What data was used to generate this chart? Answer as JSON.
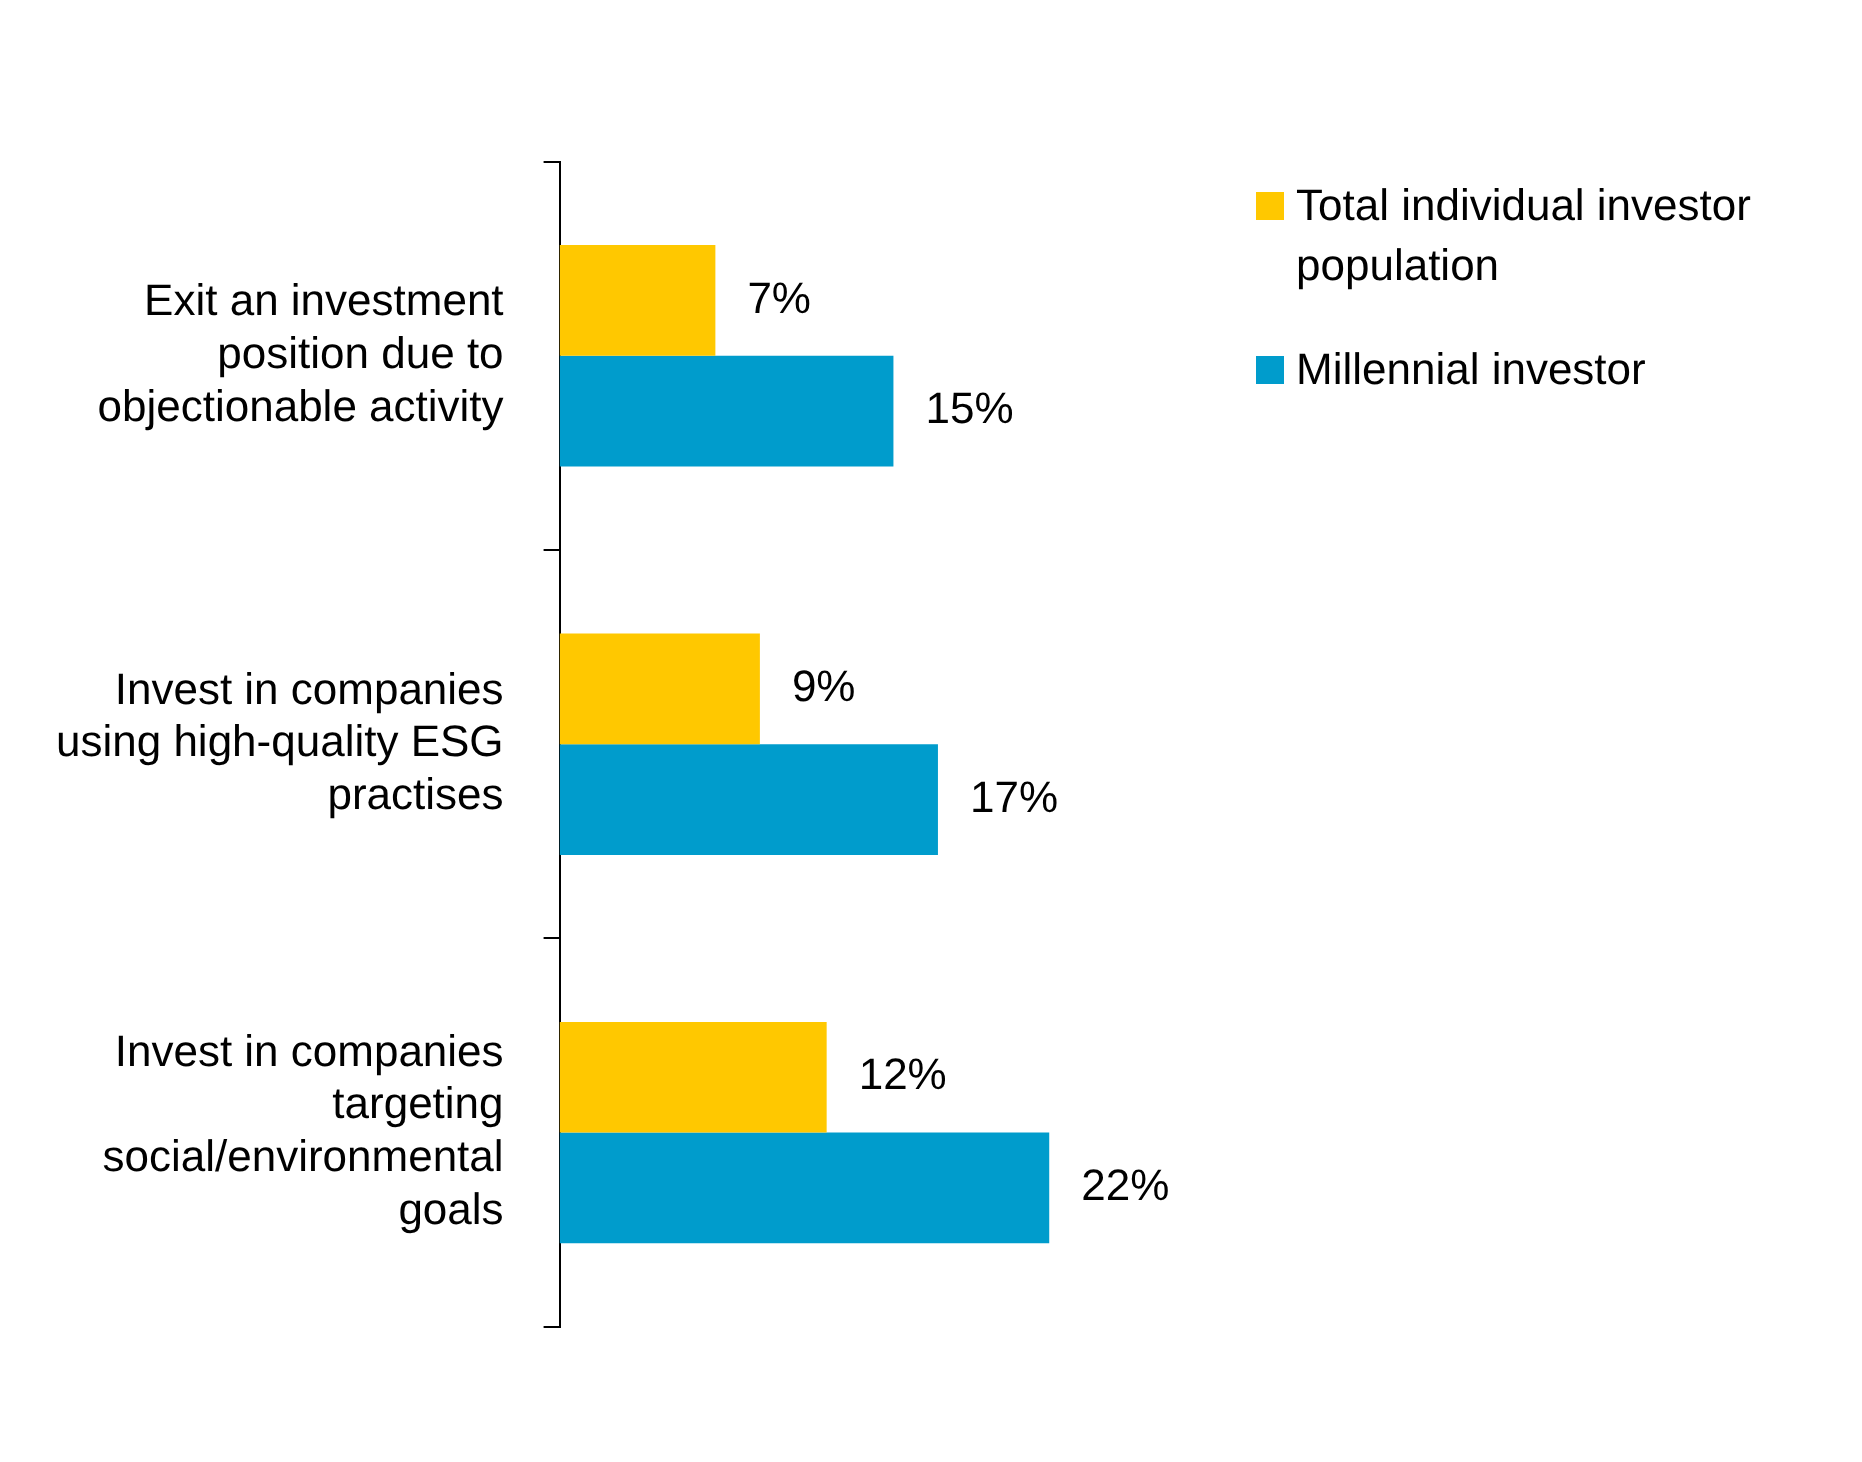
{
  "chart_data": {
    "type": "bar",
    "orientation": "horizontal",
    "categories": [
      "Exit an investment position due to objectionable activity",
      "Invest in companies using high-quality ESG practises",
      "Invest in companies targeting social/environmental goals"
    ],
    "series": [
      {
        "name": "Total individual investor population",
        "color": "#ffc800",
        "values": [
          7,
          9,
          12
        ],
        "value_labels": [
          "7%",
          "9%",
          "12%"
        ]
      },
      {
        "name": "Millennial investor",
        "color": "#009ccc",
        "values": [
          15,
          17,
          22
        ],
        "value_labels": [
          "15%",
          "17%",
          "22%"
        ]
      }
    ],
    "legend": "right"
  }
}
